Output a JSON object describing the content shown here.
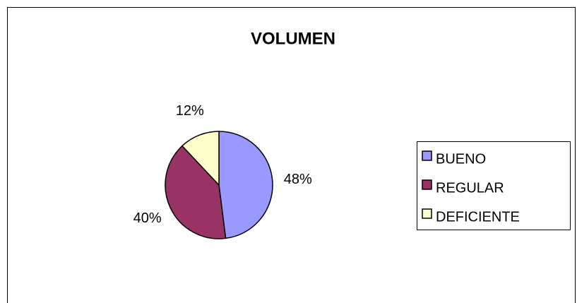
{
  "chart_data": {
    "type": "pie",
    "title": "VOLUMEN",
    "categories": [
      "BUENO",
      "REGULAR",
      "DEFICIENTE"
    ],
    "values": [
      48,
      40,
      12
    ],
    "value_labels": [
      "48%",
      "40%",
      "12%"
    ],
    "colors": [
      "#9999ff",
      "#993366",
      "#ffffcc"
    ],
    "legend": "right"
  }
}
